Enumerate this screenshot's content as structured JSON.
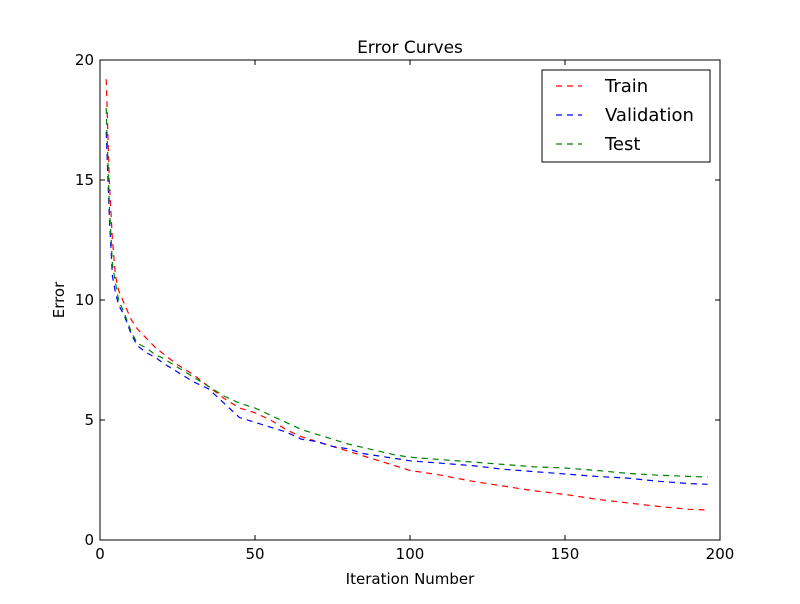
{
  "chart_data": {
    "type": "line",
    "title": "Error Curves",
    "xlabel": "Iteration Number",
    "ylabel": "Error",
    "xlim": [
      0,
      200
    ],
    "ylim": [
      0,
      20
    ],
    "xticks": [
      0,
      50,
      100,
      150,
      200
    ],
    "yticks": [
      0,
      5,
      10,
      15,
      20
    ],
    "grid": false,
    "legend_position": "top-right",
    "x": [
      2,
      3,
      4,
      5,
      6,
      8,
      10,
      12,
      15,
      18,
      20,
      25,
      30,
      35,
      40,
      45,
      50,
      55,
      60,
      65,
      70,
      75,
      80,
      85,
      90,
      95,
      100,
      110,
      120,
      130,
      140,
      150,
      160,
      170,
      180,
      190,
      196
    ],
    "series": [
      {
        "name": "Train",
        "color": "#ff0000",
        "values": [
          19.2,
          15.0,
          12.5,
          11.0,
          10.4,
          9.8,
          9.2,
          8.8,
          8.4,
          8.0,
          7.8,
          7.3,
          6.9,
          6.4,
          5.9,
          5.5,
          5.3,
          5.0,
          4.6,
          4.3,
          4.1,
          3.9,
          3.7,
          3.5,
          3.3,
          3.1,
          2.9,
          2.7,
          2.45,
          2.25,
          2.05,
          1.9,
          1.7,
          1.55,
          1.4,
          1.28,
          1.25
        ]
      },
      {
        "name": "Validation",
        "color": "#0000ff",
        "values": [
          17.0,
          13.5,
          11.0,
          10.3,
          9.8,
          9.3,
          8.6,
          8.1,
          7.8,
          7.6,
          7.4,
          7.0,
          6.6,
          6.3,
          5.7,
          5.1,
          4.9,
          4.7,
          4.5,
          4.2,
          4.1,
          3.9,
          3.8,
          3.6,
          3.5,
          3.4,
          3.3,
          3.2,
          3.1,
          2.95,
          2.85,
          2.75,
          2.65,
          2.58,
          2.45,
          2.35,
          2.32
        ]
      },
      {
        "name": "Test",
        "color": "#008000",
        "values": [
          18.0,
          14.0,
          11.5,
          10.7,
          10.0,
          9.4,
          8.7,
          8.2,
          8.0,
          7.7,
          7.6,
          7.2,
          6.8,
          6.4,
          6.0,
          5.7,
          5.5,
          5.2,
          4.9,
          4.6,
          4.4,
          4.2,
          4.0,
          3.85,
          3.7,
          3.55,
          3.45,
          3.35,
          3.25,
          3.15,
          3.05,
          3.0,
          2.9,
          2.78,
          2.7,
          2.65,
          2.62
        ]
      }
    ]
  }
}
